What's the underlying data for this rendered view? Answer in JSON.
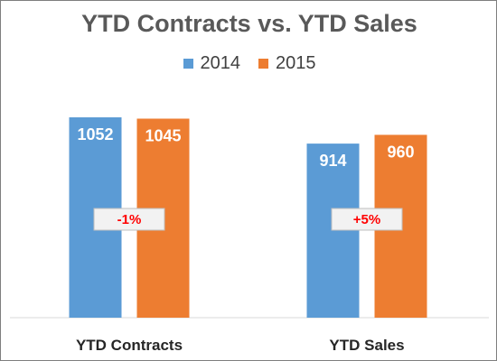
{
  "chart_data": {
    "type": "bar",
    "title": "YTD Contracts vs. YTD Sales",
    "categories": [
      "YTD Contracts",
      "YTD Sales"
    ],
    "series": [
      {
        "name": "2014",
        "color": "#5b9bd5",
        "values": [
          1052,
          914
        ]
      },
      {
        "name": "2015",
        "color": "#ed7d31",
        "values": [
          1045,
          960
        ]
      }
    ],
    "annotations": [
      "-1%",
      "+5%"
    ],
    "ylim": [
      0,
      1200
    ],
    "grid": false,
    "legend": "top",
    "annotation_color": "#ff0000"
  }
}
